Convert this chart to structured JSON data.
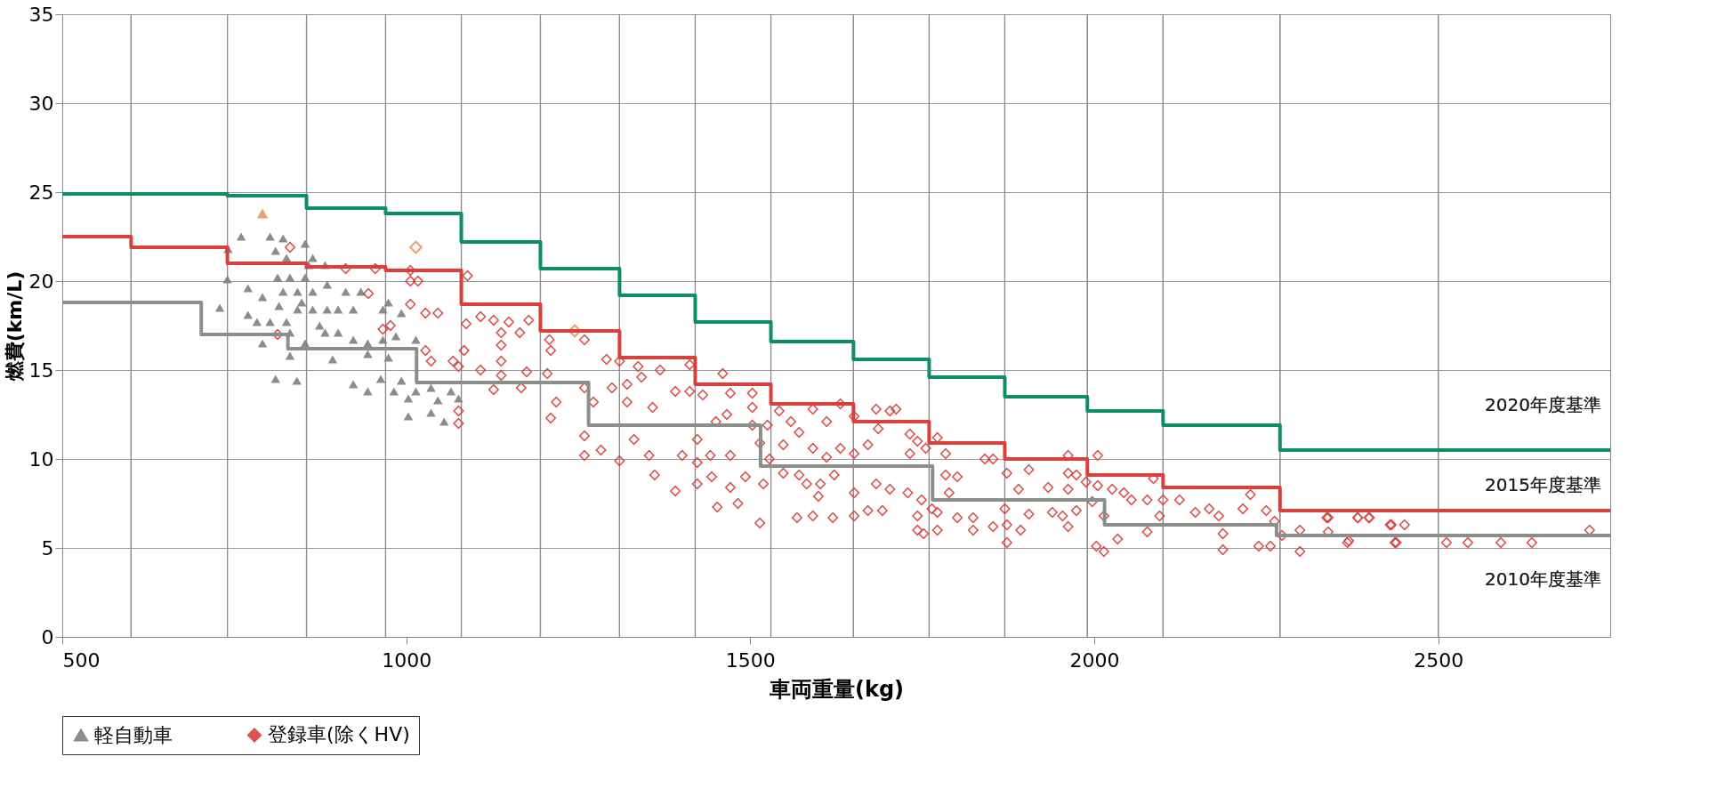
{
  "chart_data": {
    "type": "scatter",
    "xlabel": "車両重量(kg)",
    "ylabel": "燃費(km/L)",
    "xlim": [
      500,
      2750
    ],
    "ylim": [
      0,
      35
    ],
    "xticks": [
      500,
      1000,
      1500,
      2000,
      2500
    ],
    "yticks": [
      0,
      5,
      10,
      15,
      20,
      25,
      30,
      35
    ],
    "grid": "y",
    "legend": "bottom",
    "ref_lines": [
      {
        "axis": "x",
        "value": 600,
        "color": "#8c8c8c"
      },
      {
        "axis": "x",
        "value": 740,
        "color": "#8c8c8c"
      },
      {
        "axis": "x",
        "value": 855,
        "color": "#8c8c8c"
      },
      {
        "axis": "x",
        "value": 970,
        "color": "#8c8c8c"
      },
      {
        "axis": "x",
        "value": 1080,
        "color": "#8c8c8c"
      },
      {
        "axis": "x",
        "value": 1195,
        "color": "#8c8c8c"
      },
      {
        "axis": "x",
        "value": 1310,
        "color": "#8c8c8c"
      },
      {
        "axis": "x",
        "value": 1420,
        "color": "#8c8c8c"
      },
      {
        "axis": "x",
        "value": 1530,
        "color": "#8c8c8c"
      },
      {
        "axis": "x",
        "value": 1650,
        "color": "#8c8c8c"
      },
      {
        "axis": "x",
        "value": 1760,
        "color": "#8c8c8c"
      },
      {
        "axis": "x",
        "value": 1870,
        "color": "#8c8c8c"
      },
      {
        "axis": "x",
        "value": 1990,
        "color": "#8c8c8c"
      },
      {
        "axis": "x",
        "value": 2100,
        "color": "#8c8c8c"
      },
      {
        "axis": "x",
        "value": 2270,
        "color": "#8c8c8c"
      },
      {
        "axis": "x",
        "value": 2500,
        "color": "#8c8c8c"
      }
    ],
    "annotations": [
      "2020年度基準",
      "2015年度基準",
      "2010年度基準"
    ],
    "series": [
      {
        "type": "step",
        "color": "#0e8f5e",
        "x": [
          500,
          740,
          855,
          970,
          1080,
          1195,
          1310,
          1420,
          1530,
          1650,
          1760,
          1870,
          1990,
          2100,
          2270,
          2750
        ],
        "values": [
          24.9,
          24.8,
          24.1,
          23.8,
          22.2,
          20.7,
          19.2,
          17.7,
          16.6,
          15.6,
          14.6,
          13.5,
          12.7,
          11.9,
          10.5,
          10.5
        ]
      },
      {
        "type": "step",
        "color": "#d8403c",
        "x": [
          500,
          600,
          740,
          855,
          970,
          1080,
          1195,
          1310,
          1420,
          1530,
          1650,
          1760,
          1870,
          1990,
          2100,
          2270,
          2750
        ],
        "values": [
          22.5,
          21.9,
          21.0,
          20.8,
          20.6,
          18.7,
          17.2,
          15.7,
          14.2,
          13.1,
          12.1,
          10.9,
          10.0,
          9.1,
          8.4,
          7.1,
          7.1
        ]
      },
      {
        "type": "step",
        "color": "#8a8f8c",
        "x": [
          500,
          702,
          828,
          1015,
          1265,
          1515,
          1765,
          2015,
          2265,
          2750
        ],
        "values": [
          18.8,
          17.0,
          16.2,
          14.3,
          11.9,
          9.6,
          7.7,
          6.3,
          5.7,
          5.7
        ]
      },
      {
        "name": "軽自動車",
        "color": "#808080",
        "marker": "triangle",
        "x": [
          741,
          760,
          802,
          821,
          853,
          740,
          729,
          770,
          791,
          770,
          783,
          802,
          791,
          831,
          810,
          841,
          813,
          831,
          853,
          864,
          882,
          821,
          842,
          864,
          885,
          912,
          934,
          842,
          864,
          885,
          901,
          923,
          882,
          901,
          923,
          944,
          966,
          974,
          993,
          966,
          974,
          985,
          1014,
          893,
          944,
          923,
          944,
          963,
          993,
          982,
          1003,
          1014,
          1036,
          1036,
          1046,
          1065,
          1076,
          1055,
          1003,
          826,
          810,
          874,
          853,
          831,
          858,
          848,
          815,
          826
        ],
        "values": [
          21.8,
          22.5,
          22.5,
          22.4,
          22.1,
          20.1,
          18.5,
          19.6,
          19.1,
          18.1,
          17.7,
          17.7,
          16.5,
          15.8,
          14.5,
          14.4,
          20.2,
          20.2,
          20.2,
          21.3,
          20.9,
          19.4,
          19.4,
          19.4,
          19.8,
          19.4,
          19.4,
          18.4,
          18.4,
          18.4,
          18.4,
          18.4,
          17.1,
          17.1,
          16.7,
          16.5,
          18.4,
          18.8,
          18.2,
          16.7,
          15.7,
          16.9,
          16.7,
          15.6,
          15.9,
          14.2,
          13.8,
          14.5,
          14.4,
          13.8,
          13.4,
          13.8,
          14.0,
          12.6,
          13.3,
          13.8,
          13.4,
          12.1,
          12.4,
          21.3,
          21.7,
          17.5,
          16.5,
          17.1,
          20.9,
          18.8,
          18.6,
          17.7
        ]
      },
      {
        "name": "登録車(除くHV)",
        "color": "#d8403c",
        "marker": "diamond",
        "x": [
          831,
          912,
          955,
          1006,
          1006,
          1017,
          1089,
          945,
          1006,
          1028,
          1046,
          813,
          966,
          977,
          1087,
          1108,
          1127,
          1149,
          1178,
          1138,
          1165,
          1138,
          1084,
          1028,
          1036,
          1068,
          1076,
          1108,
          1138,
          1138,
          1175,
          1208,
          1210,
          1259,
          1291,
          1310,
          1337,
          1369,
          1412,
          1127,
          1167,
          1205,
          1218,
          1210,
          1259,
          1272,
          1299,
          1321,
          1342,
          1321,
          1358,
          1391,
          1412,
          1431,
          1460,
          1471,
          1503,
          1259,
          1259,
          1283,
          1310,
          1331,
          1353,
          1361,
          1391,
          1401,
          1423,
          1423,
          1423,
          1442,
          1444,
          1452,
          1471,
          1471,
          1482,
          1503,
          1514,
          1493,
          1514,
          1525,
          1503,
          1076,
          1076,
          1466,
          1450,
          1528,
          1519,
          1542,
          1559,
          1591,
          1611,
          1631,
          1651,
          1683,
          1703,
          1712,
          1548,
          1571,
          1591,
          1611,
          1631,
          1651,
          1671,
          1686,
          1548,
          1571,
          1582,
          1602,
          1622,
          1651,
          1599,
          1568,
          1591,
          1620,
          1651,
          1671,
          1692,
          1683,
          1703,
          1732,
          1743,
          1755,
          1772,
          1784,
          1732,
          1784,
          1801,
          1729,
          1749,
          1764,
          1789,
          1743,
          1772,
          1801,
          1743,
          1752,
          1772,
          1824,
          1824,
          1853,
          1841,
          1853,
          1873,
          1905,
          1890,
          1870,
          1873,
          1893,
          1873,
          1905,
          1933,
          1939,
          1962,
          1962,
          1974,
          1988,
          1962,
          1954,
          1974,
          1962,
          1997,
          2005,
          2005,
          2026,
          2043,
          2014,
          2034,
          2003,
          2014,
          2054,
          2077,
          2086,
          2100,
          2124,
          2095,
          2077,
          2147,
          2167,
          2181,
          2187,
          2187,
          2216,
          2227,
          2250,
          2262,
          2273,
          2239,
          2256,
          2299,
          2299,
          2340,
          2340,
          2368,
          2383,
          2400,
          2432,
          2437,
          2338,
          2383,
          2399,
          2430,
          2451,
          2439,
          2370,
          2720,
          2512,
          2543,
          2591,
          2636
        ],
        "values": [
          21.9,
          20.7,
          20.7,
          20.6,
          20.0,
          20.0,
          20.3,
          19.3,
          18.7,
          18.2,
          18.2,
          17.0,
          17.3,
          17.5,
          17.6,
          18.0,
          17.8,
          17.7,
          17.8,
          17.1,
          17.1,
          16.4,
          16.1,
          16.1,
          15.5,
          15.5,
          15.2,
          15.0,
          15.5,
          14.7,
          14.9,
          16.7,
          16.1,
          16.7,
          15.6,
          15.5,
          15.2,
          15.0,
          15.3,
          13.9,
          14.0,
          14.8,
          13.2,
          12.3,
          14.0,
          13.2,
          14.0,
          14.2,
          14.6,
          13.2,
          12.9,
          13.8,
          13.8,
          13.6,
          14.8,
          13.7,
          13.7,
          11.3,
          10.2,
          10.5,
          9.9,
          11.1,
          10.2,
          9.1,
          8.2,
          10.2,
          11.1,
          9.8,
          8.6,
          10.2,
          9.0,
          7.3,
          10.2,
          8.4,
          7.5,
          11.9,
          10.9,
          9.0,
          6.4,
          11.9,
          12.9,
          12.7,
          12.0,
          12.5,
          12.1,
          10.0,
          8.6,
          12.7,
          12.1,
          12.8,
          12.1,
          13.1,
          12.4,
          12.8,
          12.7,
          12.8,
          10.8,
          11.5,
          10.6,
          10.1,
          10.6,
          10.3,
          10.8,
          11.7,
          9.2,
          9.1,
          8.6,
          8.6,
          9.1,
          8.1,
          7.9,
          6.7,
          6.8,
          6.7,
          6.8,
          7.1,
          7.1,
          8.6,
          8.3,
          11.4,
          11.0,
          10.6,
          11.2,
          10.3,
          10.3,
          9.1,
          9.0,
          8.1,
          7.7,
          7.2,
          8.1,
          6.8,
          7.0,
          6.7,
          6.0,
          5.8,
          6.0,
          6.7,
          6.0,
          6.2,
          10.0,
          10.0,
          9.2,
          9.4,
          8.3,
          7.2,
          6.3,
          6.0,
          5.3,
          6.9,
          8.4,
          7.0,
          10.2,
          9.2,
          9.1,
          8.7,
          8.3,
          6.8,
          7.1,
          6.2,
          7.6,
          10.2,
          8.5,
          8.3,
          8.1,
          6.8,
          5.5,
          5.1,
          4.8,
          7.7,
          7.7,
          8.9,
          7.7,
          7.7,
          6.8,
          5.9,
          7.0,
          7.2,
          6.8,
          5.8,
          4.9,
          7.2,
          8.0,
          7.1,
          6.5,
          5.7,
          5.1,
          5.1,
          6.0,
          4.8,
          6.7,
          5.9,
          5.3,
          6.7,
          6.7,
          6.3,
          5.3,
          6.7,
          6.7,
          6.7,
          6.3,
          6.3,
          5.3,
          5.4,
          6.0,
          5.3,
          5.3,
          5.3,
          5.3
        ]
      },
      {
        "color": "#e07840",
        "marker": "triangle",
        "x": [
          791
        ],
        "values": [
          23.8
        ]
      },
      {
        "color": "#e07840",
        "marker": "diamond",
        "x": [
          1014,
          1245
        ],
        "values": [
          21.9,
          17.2
        ]
      }
    ]
  }
}
